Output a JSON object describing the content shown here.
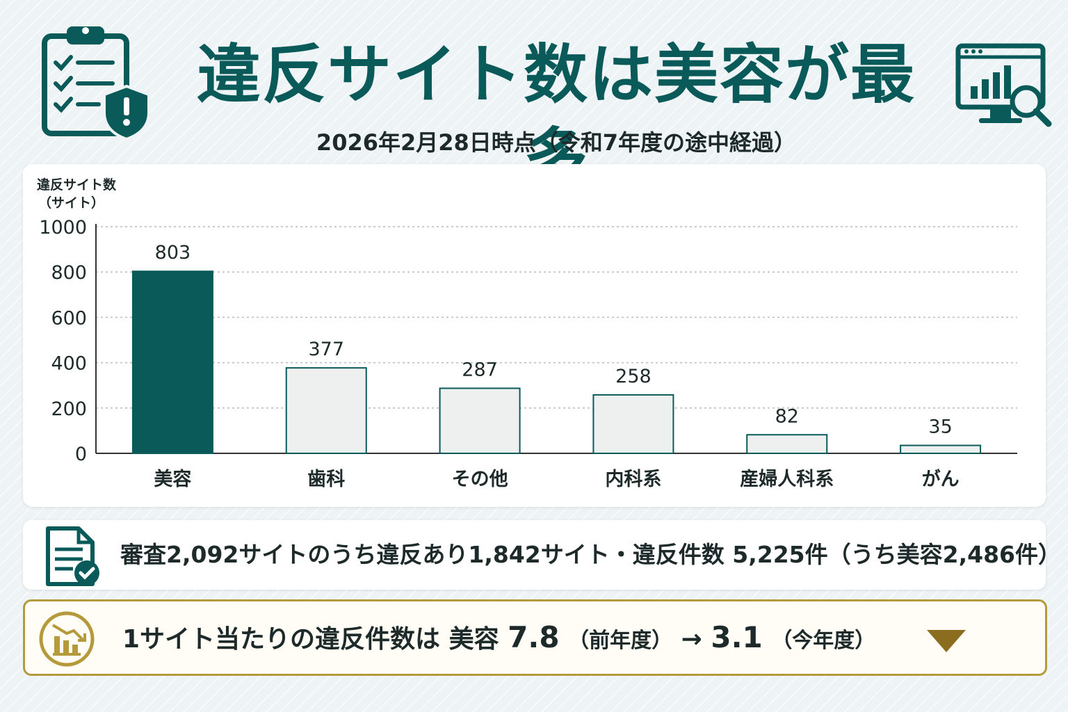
{
  "header": {
    "title": "違反サイト数は美容が最多",
    "subtitle": "2026年2月28日時点（令和7年度の途中経過）",
    "left_icon": "clipboard-check-shield-icon",
    "right_icon": "monitor-chart-magnifier-icon"
  },
  "colors": {
    "accent": "#0a5a5a",
    "bar_highlight": "#0a5a5a",
    "bar_default_fill": "#eef0ef",
    "bar_default_stroke": "#0a5a5a",
    "gold": "#b59a3c"
  },
  "chart_data": {
    "type": "bar",
    "ylabel_line1": "違反サイト数",
    "ylabel_line2": "（サイト）",
    "ylim": [
      0,
      1000
    ],
    "yticks": [
      0,
      200,
      400,
      600,
      800,
      1000
    ],
    "grid": true,
    "categories": [
      "美容",
      "歯科",
      "その他",
      "内科系",
      "産婦人科系",
      "がん"
    ],
    "values": [
      803,
      377,
      287,
      258,
      82,
      35
    ],
    "highlight_index": 0
  },
  "summary": {
    "icon": "document-check-icon",
    "text": "審査2,092サイトのうち違反あり1,842サイト・違反件数 5,225件（うち美容2,486件）"
  },
  "highlight": {
    "icon": "declining-bar-chart-icon",
    "label": "1サイト当たりの違反件数は 美容",
    "previous_value": "7.8",
    "previous_label": "（前年度）",
    "arrow": "→",
    "current_value": "3.1",
    "current_label": "（今年度）",
    "trend_icon": "down-triangle-icon"
  }
}
